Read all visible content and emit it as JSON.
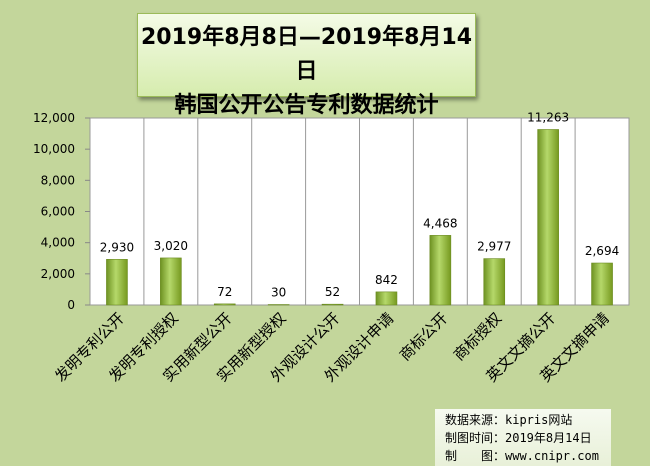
{
  "chart_data": {
    "type": "bar",
    "title": "2019年8月8日—2019年8月14日",
    "subtitle": "韩国公开公告专利数据统计",
    "categories": [
      "发明专利公开",
      "发明专利授权",
      "实用新型公开",
      "实用新型授权",
      "外观设计公开",
      "外观设计申请",
      "商标公开",
      "商标授权",
      "英文文摘公开",
      "英文文摘申请"
    ],
    "values": [
      2930,
      3020,
      72,
      30,
      52,
      842,
      4468,
      2977,
      11263,
      2694
    ],
    "value_labels": [
      "2,930",
      "3,020",
      "72",
      "30",
      "52",
      "842",
      "4,468",
      "2,977",
      "11,263",
      "2,694"
    ],
    "yticks": [
      "0",
      "2,000",
      "4,000",
      "6,000",
      "8,000",
      "10,000",
      "12,000"
    ],
    "ylim": [
      0,
      12000
    ],
    "xlabel": "",
    "ylabel": "",
    "grid": "vertical",
    "bar_color": "#8db33a"
  },
  "footer": {
    "source": "数据来源：kipris网站",
    "date": "制图时间：2019年8月14日",
    "maker": "制　　图：www.cnipr.com"
  }
}
